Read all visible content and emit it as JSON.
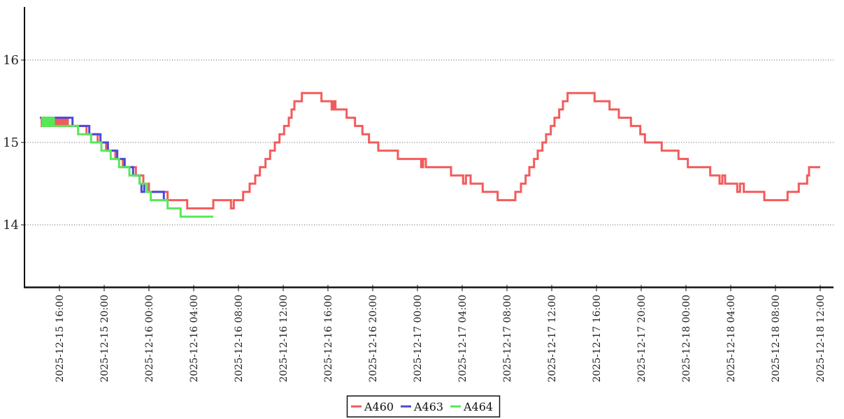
{
  "chart_data": {
    "type": "line",
    "line_style": "step-after",
    "title": "",
    "xlabel": "",
    "ylabel": "",
    "grid": "horizontal-dotted",
    "legend_position": "bottom-center",
    "y_ticks": [
      "16",
      "15",
      "14"
    ],
    "y_tick_values": [
      16,
      15,
      14
    ],
    "y_range": [
      13.3,
      16.65
    ],
    "x_ticks": [
      "2025-12-15 16:00",
      "2025-12-15 20:00",
      "2025-12-16 00:00",
      "2025-12-16 04:00",
      "2025-12-16 08:00",
      "2025-12-16 12:00",
      "2025-12-16 16:00",
      "2025-12-16 20:00",
      "2025-12-17 00:00",
      "2025-12-17 04:00",
      "2025-12-17 08:00",
      "2025-12-17 12:00",
      "2025-12-17 16:00",
      "2025-12-17 20:00",
      "2025-12-18 00:00",
      "2025-12-18 04:00",
      "2025-12-18 08:00",
      "2025-12-18 12:00"
    ],
    "series": [
      {
        "name": "A460",
        "color": "#f25b5b",
        "end": "2025-12-18 12:00",
        "points": [
          [
            "2025-12-15 14:15",
            15.3
          ],
          [
            "2025-12-15 14:25",
            15.2
          ],
          [
            "2025-12-15 14:35",
            15.3
          ],
          [
            "2025-12-15 14:45",
            15.2
          ],
          [
            "2025-12-15 14:55",
            15.3
          ],
          [
            "2025-12-15 15:05",
            15.2
          ],
          [
            "2025-12-15 15:15",
            15.3
          ],
          [
            "2025-12-15 15:25",
            15.2
          ],
          [
            "2025-12-15 15:35",
            15.3
          ],
          [
            "2025-12-15 15:45",
            15.2
          ],
          [
            "2025-12-15 15:55",
            15.3
          ],
          [
            "2025-12-15 16:05",
            15.2
          ],
          [
            "2025-12-15 16:15",
            15.3
          ],
          [
            "2025-12-15 16:25",
            15.2
          ],
          [
            "2025-12-15 16:35",
            15.3
          ],
          [
            "2025-12-15 16:45",
            15.2
          ],
          [
            "2025-12-15 18:25",
            15.1
          ],
          [
            "2025-12-15 19:25",
            15.0
          ],
          [
            "2025-12-15 20:10",
            14.9
          ],
          [
            "2025-12-15 21:00",
            14.8
          ],
          [
            "2025-12-15 21:40",
            14.7
          ],
          [
            "2025-12-15 22:50",
            14.6
          ],
          [
            "2025-12-15 23:30",
            14.5
          ],
          [
            "2025-12-16 00:00",
            14.4
          ],
          [
            "2025-12-16 01:40",
            14.3
          ],
          [
            "2025-12-16 03:25",
            14.2
          ],
          [
            "2025-12-16 05:45",
            14.3
          ],
          [
            "2025-12-16 07:20",
            14.2
          ],
          [
            "2025-12-16 07:35",
            14.3
          ],
          [
            "2025-12-16 08:25",
            14.4
          ],
          [
            "2025-12-16 09:00",
            14.5
          ],
          [
            "2025-12-16 09:30",
            14.6
          ],
          [
            "2025-12-16 09:55",
            14.7
          ],
          [
            "2025-12-16 10:25",
            14.8
          ],
          [
            "2025-12-16 10:50",
            14.9
          ],
          [
            "2025-12-16 11:15",
            15.0
          ],
          [
            "2025-12-16 11:40",
            15.1
          ],
          [
            "2025-12-16 12:05",
            15.2
          ],
          [
            "2025-12-16 12:30",
            15.3
          ],
          [
            "2025-12-16 12:45",
            15.4
          ],
          [
            "2025-12-16 13:00",
            15.5
          ],
          [
            "2025-12-16 13:40",
            15.6
          ],
          [
            "2025-12-16 15:25",
            15.5
          ],
          [
            "2025-12-16 16:20",
            15.4
          ],
          [
            "2025-12-16 16:30",
            15.5
          ],
          [
            "2025-12-16 16:40",
            15.4
          ],
          [
            "2025-12-16 17:40",
            15.3
          ],
          [
            "2025-12-16 18:25",
            15.2
          ],
          [
            "2025-12-16 19:05",
            15.1
          ],
          [
            "2025-12-16 19:40",
            15.0
          ],
          [
            "2025-12-16 20:30",
            14.9
          ],
          [
            "2025-12-16 22:15",
            14.8
          ],
          [
            "2025-12-17 00:20",
            14.7
          ],
          [
            "2025-12-17 00:30",
            14.8
          ],
          [
            "2025-12-17 00:45",
            14.7
          ],
          [
            "2025-12-17 03:00",
            14.6
          ],
          [
            "2025-12-17 04:05",
            14.5
          ],
          [
            "2025-12-17 04:20",
            14.6
          ],
          [
            "2025-12-17 04:45",
            14.5
          ],
          [
            "2025-12-17 05:50",
            14.4
          ],
          [
            "2025-12-17 07:10",
            14.3
          ],
          [
            "2025-12-17 08:45",
            14.4
          ],
          [
            "2025-12-17 09:15",
            14.5
          ],
          [
            "2025-12-17 09:40",
            14.6
          ],
          [
            "2025-12-17 10:00",
            14.7
          ],
          [
            "2025-12-17 10:25",
            14.8
          ],
          [
            "2025-12-17 10:45",
            14.9
          ],
          [
            "2025-12-17 11:10",
            15.0
          ],
          [
            "2025-12-17 11:30",
            15.1
          ],
          [
            "2025-12-17 11:55",
            15.2
          ],
          [
            "2025-12-17 12:15",
            15.3
          ],
          [
            "2025-12-17 12:40",
            15.4
          ],
          [
            "2025-12-17 13:00",
            15.5
          ],
          [
            "2025-12-17 13:25",
            15.6
          ],
          [
            "2025-12-17 15:50",
            15.5
          ],
          [
            "2025-12-17 17:10",
            15.4
          ],
          [
            "2025-12-17 18:00",
            15.3
          ],
          [
            "2025-12-17 19:05",
            15.2
          ],
          [
            "2025-12-17 19:55",
            15.1
          ],
          [
            "2025-12-17 20:20",
            15.0
          ],
          [
            "2025-12-17 21:50",
            14.9
          ],
          [
            "2025-12-17 23:20",
            14.8
          ],
          [
            "2025-12-18 00:10",
            14.7
          ],
          [
            "2025-12-18 02:10",
            14.6
          ],
          [
            "2025-12-18 03:00",
            14.5
          ],
          [
            "2025-12-18 03:15",
            14.6
          ],
          [
            "2025-12-18 03:30",
            14.5
          ],
          [
            "2025-12-18 04:35",
            14.4
          ],
          [
            "2025-12-18 04:50",
            14.5
          ],
          [
            "2025-12-18 05:10",
            14.4
          ],
          [
            "2025-12-18 07:00",
            14.3
          ],
          [
            "2025-12-18 09:05",
            14.4
          ],
          [
            "2025-12-18 10:05",
            14.5
          ],
          [
            "2025-12-18 10:50",
            14.6
          ],
          [
            "2025-12-18 11:00",
            14.7
          ]
        ]
      },
      {
        "name": "A463",
        "color": "#4a4ad9",
        "end": "2025-12-16 01:35",
        "points": [
          [
            "2025-12-15 14:15",
            15.3
          ],
          [
            "2025-12-15 17:10",
            15.2
          ],
          [
            "2025-12-15 18:40",
            15.1
          ],
          [
            "2025-12-15 19:40",
            15.0
          ],
          [
            "2025-12-15 20:20",
            14.9
          ],
          [
            "2025-12-15 21:10",
            14.8
          ],
          [
            "2025-12-15 21:50",
            14.7
          ],
          [
            "2025-12-15 22:35",
            14.6
          ],
          [
            "2025-12-15 23:10",
            14.5
          ],
          [
            "2025-12-15 23:20",
            14.4
          ],
          [
            "2025-12-15 23:35",
            14.5
          ],
          [
            "2025-12-15 23:50",
            14.4
          ],
          [
            "2025-12-16 01:20",
            14.3
          ]
        ]
      },
      {
        "name": "A464",
        "color": "#57e857",
        "end": "2025-12-16 05:45",
        "points": [
          [
            "2025-12-15 14:20",
            15.3
          ],
          [
            "2025-12-15 14:30",
            15.2
          ],
          [
            "2025-12-15 14:40",
            15.3
          ],
          [
            "2025-12-15 14:50",
            15.2
          ],
          [
            "2025-12-15 15:00",
            15.3
          ],
          [
            "2025-12-15 15:10",
            15.2
          ],
          [
            "2025-12-15 15:20",
            15.3
          ],
          [
            "2025-12-15 15:30",
            15.2
          ],
          [
            "2025-12-15 17:40",
            15.1
          ],
          [
            "2025-12-15 18:50",
            15.0
          ],
          [
            "2025-12-15 19:45",
            14.9
          ],
          [
            "2025-12-15 20:35",
            14.8
          ],
          [
            "2025-12-15 21:20",
            14.7
          ],
          [
            "2025-12-15 22:15",
            14.6
          ],
          [
            "2025-12-15 23:10",
            14.5
          ],
          [
            "2025-12-15 23:50",
            14.4
          ],
          [
            "2025-12-16 00:10",
            14.3
          ],
          [
            "2025-12-16 01:40",
            14.2
          ],
          [
            "2025-12-16 02:50",
            14.1
          ]
        ]
      }
    ]
  }
}
